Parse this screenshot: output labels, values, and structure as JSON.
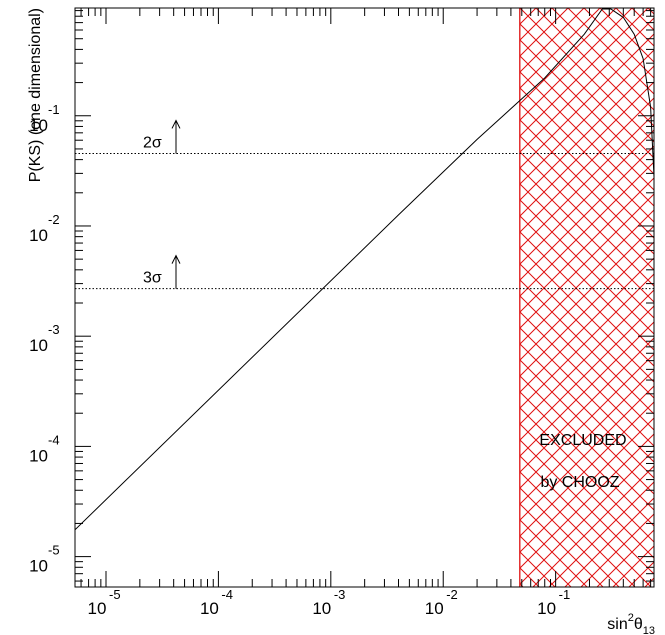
{
  "chart_data": {
    "type": "line",
    "title": "",
    "xlabel": {
      "base": "sin",
      "sup": "2",
      "sym": "θ",
      "sub": "13"
    },
    "ylabel": "P(KS) (one dimensional)",
    "xscale": "log",
    "yscale": "log",
    "xlim": [
      5.3e-06,
      0.75
    ],
    "ylim": [
      5.3e-06,
      0.95
    ],
    "grid": false,
    "xticks": [
      {
        "value": 1e-05,
        "base": "10",
        "exp": "-5"
      },
      {
        "value": 0.0001,
        "base": "10",
        "exp": "-4"
      },
      {
        "value": 0.001,
        "base": "10",
        "exp": "-3"
      },
      {
        "value": 0.01,
        "base": "10",
        "exp": "-2"
      },
      {
        "value": 0.1,
        "base": "10",
        "exp": "-1"
      }
    ],
    "yticks": [
      {
        "value": 1e-05,
        "base": "10",
        "exp": "-5"
      },
      {
        "value": 0.0001,
        "base": "10",
        "exp": "-4"
      },
      {
        "value": 0.001,
        "base": "10",
        "exp": "-3"
      },
      {
        "value": 0.01,
        "base": "10",
        "exp": "-2"
      },
      {
        "value": 0.1,
        "base": "10",
        "exp": "-1"
      }
    ],
    "series": [
      {
        "x": [
          5.3e-06,
          0.004,
          0.02,
          0.08,
          0.18,
          0.26,
          0.31,
          0.4,
          0.5,
          0.6,
          0.7,
          0.75
        ],
        "y": [
          1.75e-05,
          0.0126,
          0.061,
          0.22,
          0.55,
          0.93,
          0.93,
          0.78,
          0.55,
          0.33,
          0.12,
          0.028
        ]
      }
    ],
    "thresholds": [
      {
        "label": "2σ",
        "value": 0.0455
      },
      {
        "label": "3σ",
        "value": 0.0027
      }
    ],
    "excluded_region": {
      "x_from": 0.048,
      "x_to": 0.75,
      "color": "#e01010",
      "label_lines": [
        "EXCLUDED",
        "by CHOOZ"
      ]
    }
  }
}
